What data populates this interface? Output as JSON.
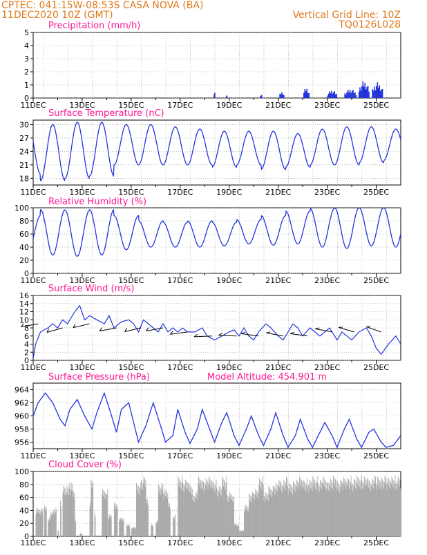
{
  "header": {
    "line1_left": "CPTEC:   041:15W-08:53S   CASA NOVA (BA)",
    "line2_left": "11DEC2020 10Z (GMT)",
    "line1_right": "Vertical Grid Line: 10Z",
    "line2_right": "TQ0126L028"
  },
  "colors": {
    "header": "#e07a1a",
    "title": "#ff1493",
    "series": "#2233dd",
    "cloud": "#a9a9a9",
    "grid": "#999999"
  },
  "x_axis": {
    "tick_labels": [
      "11DEC",
      "13DEC",
      "15DEC",
      "17DEC",
      "19DEC",
      "21DEC",
      "23DEC",
      "25DEC"
    ],
    "tick_days": [
      0,
      2,
      4,
      6,
      8,
      10,
      12,
      14
    ],
    "day_range": [
      0,
      15
    ]
  },
  "chart_data": [
    {
      "id": "precip",
      "type": "bar",
      "title": "Precipitation (mm/h)",
      "ylim": [
        0,
        5
      ],
      "yticks": [
        0,
        1,
        2,
        3,
        4,
        5
      ],
      "bursts": [
        {
          "day": 7.4,
          "width": 0.05,
          "peak": 0.6
        },
        {
          "day": 7.9,
          "width": 0.05,
          "peak": 0.25
        },
        {
          "day": 9.3,
          "width": 0.1,
          "peak": 0.3
        },
        {
          "day": 10.15,
          "width": 0.2,
          "peak": 0.5
        },
        {
          "day": 11.15,
          "width": 0.25,
          "peak": 0.8
        },
        {
          "day": 12.2,
          "width": 0.4,
          "peak": 0.6
        },
        {
          "day": 12.95,
          "width": 0.5,
          "peak": 0.7
        },
        {
          "day": 13.5,
          "width": 0.45,
          "peak": 1.3
        },
        {
          "day": 14.05,
          "width": 0.45,
          "peak": 1.2
        }
      ]
    },
    {
      "id": "temp",
      "type": "line",
      "title": "Surface Temperature (nC)",
      "ylim": [
        16.5,
        31
      ],
      "yticks": [
        18,
        21,
        24,
        27,
        30
      ],
      "period_days": 1,
      "min_phase_day": 0.3,
      "min_values": [
        19,
        17.5,
        18,
        18.5,
        21,
        21,
        21,
        21,
        20.5,
        21,
        20,
        20.5,
        21,
        21,
        21.5,
        22
      ],
      "max_values": [
        30,
        30,
        30.5,
        30.5,
        30,
        30,
        29.5,
        29,
        28.5,
        28.5,
        28.5,
        28,
        29,
        29.5,
        29.5,
        29
      ]
    },
    {
      "id": "rh",
      "type": "line",
      "title": "Relative Humidity (%)",
      "ylim": [
        0,
        100
      ],
      "yticks": [
        0,
        20,
        40,
        60,
        80,
        100
      ],
      "period_days": 1,
      "max_phase_day": 0.3,
      "max_values": [
        88,
        97,
        96,
        97,
        88,
        80,
        78,
        80,
        78,
        82,
        88,
        95,
        99,
        100,
        100,
        100
      ],
      "min_values": [
        35,
        28,
        26,
        28,
        36,
        40,
        40,
        40,
        42,
        45,
        43,
        45,
        40,
        38,
        42,
        40
      ]
    },
    {
      "id": "wind",
      "type": "line",
      "title": "Surface Wind (m/s)",
      "ylim": [
        0,
        16
      ],
      "yticks": [
        0,
        2,
        4,
        6,
        8,
        10,
        12,
        14,
        16
      ],
      "speed_points": [
        [
          0,
          0.5
        ],
        [
          0.1,
          4
        ],
        [
          0.3,
          7
        ],
        [
          0.6,
          8
        ],
        [
          0.8,
          9
        ],
        [
          1.0,
          8
        ],
        [
          1.2,
          10
        ],
        [
          1.4,
          9
        ],
        [
          1.7,
          12
        ],
        [
          1.9,
          13.5
        ],
        [
          2.1,
          10
        ],
        [
          2.3,
          11
        ],
        [
          2.6,
          10
        ],
        [
          2.9,
          9
        ],
        [
          3.1,
          11
        ],
        [
          3.3,
          8
        ],
        [
          3.6,
          9.5
        ],
        [
          3.9,
          10
        ],
        [
          4.1,
          9
        ],
        [
          4.3,
          7
        ],
        [
          4.5,
          10
        ],
        [
          4.7,
          9
        ],
        [
          4.9,
          8
        ],
        [
          5.1,
          7
        ],
        [
          5.3,
          9
        ],
        [
          5.5,
          7
        ],
        [
          5.7,
          8
        ],
        [
          5.9,
          7
        ],
        [
          6.1,
          8
        ],
        [
          6.3,
          7
        ],
        [
          6.6,
          7
        ],
        [
          6.9,
          8
        ],
        [
          7.1,
          6
        ],
        [
          7.4,
          5
        ],
        [
          7.7,
          6
        ],
        [
          8.0,
          7
        ],
        [
          8.2,
          7.5
        ],
        [
          8.4,
          6
        ],
        [
          8.6,
          8
        ],
        [
          8.8,
          6
        ],
        [
          9.0,
          5
        ],
        [
          9.2,
          7
        ],
        [
          9.5,
          9
        ],
        [
          9.7,
          8
        ],
        [
          10.0,
          6
        ],
        [
          10.2,
          5
        ],
        [
          10.4,
          7
        ],
        [
          10.6,
          9
        ],
        [
          10.8,
          8
        ],
        [
          11.0,
          6
        ],
        [
          11.3,
          8
        ],
        [
          11.5,
          7
        ],
        [
          11.7,
          6
        ],
        [
          11.9,
          7
        ],
        [
          12.1,
          8
        ],
        [
          12.4,
          5
        ],
        [
          12.6,
          7
        ],
        [
          12.8,
          6
        ],
        [
          13.0,
          5
        ],
        [
          13.3,
          7
        ],
        [
          13.6,
          8
        ],
        [
          13.8,
          6
        ],
        [
          14.0,
          3
        ],
        [
          14.2,
          1.5
        ],
        [
          14.5,
          4
        ],
        [
          14.8,
          6
        ],
        [
          15.0,
          4
        ]
      ],
      "barbs": [
        {
          "day": 0.2,
          "speed": 9,
          "dir_deg": 160
        },
        {
          "day": 1.2,
          "speed": 8,
          "dir_deg": 150
        },
        {
          "day": 2.3,
          "speed": 9,
          "dir_deg": 155
        },
        {
          "day": 3.4,
          "speed": 8,
          "dir_deg": 160
        },
        {
          "day": 4.4,
          "speed": 8,
          "dir_deg": 155
        },
        {
          "day": 5.3,
          "speed": 8,
          "dir_deg": 160
        },
        {
          "day": 6.3,
          "speed": 7,
          "dir_deg": 165
        },
        {
          "day": 7.3,
          "speed": 6,
          "dir_deg": 175
        },
        {
          "day": 8.3,
          "speed": 6,
          "dir_deg": 185
        },
        {
          "day": 9.2,
          "speed": 6,
          "dir_deg": 195
        },
        {
          "day": 10.2,
          "speed": 6,
          "dir_deg": 200
        },
        {
          "day": 11.2,
          "speed": 6,
          "dir_deg": 195
        },
        {
          "day": 12.2,
          "speed": 7,
          "dir_deg": 200
        },
        {
          "day": 13.1,
          "speed": 7,
          "dir_deg": 210
        },
        {
          "day": 14.2,
          "speed": 7,
          "dir_deg": 215
        }
      ]
    },
    {
      "id": "press",
      "type": "line",
      "title": "Surface Pressure (hPa)",
      "annotation": "Model Altitude: 454.901  m",
      "ylim": [
        955,
        965
      ],
      "yticks": [
        956,
        958,
        960,
        962,
        964
      ],
      "points": [
        [
          0,
          960
        ],
        [
          0.2,
          962
        ],
        [
          0.5,
          963.5
        ],
        [
          0.8,
          962
        ],
        [
          1.1,
          959.5
        ],
        [
          1.3,
          958.5
        ],
        [
          1.5,
          961
        ],
        [
          1.8,
          962.5
        ],
        [
          2.1,
          960
        ],
        [
          2.4,
          958
        ],
        [
          2.6,
          960.5
        ],
        [
          2.9,
          963.5
        ],
        [
          3.2,
          960
        ],
        [
          3.4,
          957.5
        ],
        [
          3.6,
          961
        ],
        [
          3.9,
          962
        ],
        [
          4.1,
          959
        ],
        [
          4.3,
          956
        ],
        [
          4.6,
          958.5
        ],
        [
          4.9,
          962
        ],
        [
          5.2,
          958.5
        ],
        [
          5.4,
          956
        ],
        [
          5.7,
          957
        ],
        [
          5.9,
          961
        ],
        [
          6.2,
          957.5
        ],
        [
          6.4,
          955.8
        ],
        [
          6.7,
          958
        ],
        [
          6.9,
          961
        ],
        [
          7.2,
          958
        ],
        [
          7.4,
          956
        ],
        [
          7.7,
          959
        ],
        [
          7.9,
          960.5
        ],
        [
          8.2,
          957
        ],
        [
          8.4,
          955.5
        ],
        [
          8.7,
          958
        ],
        [
          8.9,
          960
        ],
        [
          9.2,
          957
        ],
        [
          9.4,
          955.5
        ],
        [
          9.7,
          958
        ],
        [
          9.9,
          960.5
        ],
        [
          10.2,
          957
        ],
        [
          10.4,
          955.2
        ],
        [
          10.7,
          957
        ],
        [
          10.9,
          959.5
        ],
        [
          11.2,
          956.5
        ],
        [
          11.4,
          955.2
        ],
        [
          11.7,
          957.5
        ],
        [
          11.9,
          959
        ],
        [
          12.2,
          957
        ],
        [
          12.4,
          955.2
        ],
        [
          12.7,
          958
        ],
        [
          12.9,
          959.5
        ],
        [
          13.2,
          956.5
        ],
        [
          13.4,
          955.2
        ],
        [
          13.7,
          957.5
        ],
        [
          13.9,
          958
        ],
        [
          14.2,
          956
        ],
        [
          14.4,
          955.2
        ],
        [
          14.7,
          955.5
        ],
        [
          15.0,
          957
        ]
      ]
    },
    {
      "id": "cloud",
      "type": "area",
      "title": "Cloud Cover (%)",
      "ylim": [
        0,
        100
      ],
      "yticks": [
        0,
        20,
        40,
        60,
        80,
        100
      ],
      "segments": [
        [
          0.1,
          0.4,
          45
        ],
        [
          0.45,
          0.55,
          50
        ],
        [
          0.6,
          0.7,
          30
        ],
        [
          0.7,
          0.8,
          40
        ],
        [
          0.8,
          0.95,
          45
        ],
        [
          1.0,
          1.05,
          10
        ],
        [
          1.1,
          1.15,
          60
        ],
        [
          1.2,
          1.35,
          80
        ],
        [
          1.35,
          1.5,
          85
        ],
        [
          1.5,
          1.6,
          85
        ],
        [
          1.6,
          1.7,
          75
        ],
        [
          1.7,
          1.75,
          30
        ],
        [
          1.9,
          2.0,
          5
        ],
        [
          2.3,
          2.35,
          60
        ],
        [
          2.35,
          2.45,
          90
        ],
        [
          2.5,
          2.55,
          40
        ],
        [
          2.8,
          3.0,
          75
        ],
        [
          3.0,
          3.05,
          80
        ],
        [
          3.05,
          3.2,
          35
        ],
        [
          3.3,
          3.45,
          55
        ],
        [
          3.5,
          3.7,
          30
        ],
        [
          3.8,
          3.95,
          20
        ],
        [
          4.0,
          4.2,
          15
        ],
        [
          4.2,
          4.4,
          85
        ],
        [
          4.4,
          4.6,
          95
        ],
        [
          4.6,
          4.7,
          60
        ],
        [
          4.8,
          4.9,
          20
        ],
        [
          5.0,
          5.1,
          25
        ],
        [
          5.1,
          5.3,
          85
        ],
        [
          5.3,
          5.5,
          75
        ],
        [
          5.5,
          5.6,
          55
        ],
        [
          5.7,
          5.8,
          35
        ],
        [
          5.9,
          6.1,
          95
        ],
        [
          6.1,
          6.3,
          90
        ],
        [
          6.3,
          6.5,
          85
        ],
        [
          6.5,
          6.7,
          70
        ],
        [
          6.7,
          6.9,
          95
        ],
        [
          6.9,
          7.1,
          92
        ],
        [
          7.1,
          7.3,
          95
        ],
        [
          7.3,
          7.5,
          90
        ],
        [
          7.5,
          7.7,
          80
        ],
        [
          7.7,
          7.9,
          95
        ],
        [
          7.9,
          8.2,
          70
        ],
        [
          8.2,
          8.4,
          20
        ],
        [
          8.4,
          8.6,
          10
        ],
        [
          8.6,
          8.8,
          50
        ],
        [
          8.8,
          9.0,
          70
        ],
        [
          9.0,
          9.2,
          75
        ],
        [
          9.2,
          9.4,
          95
        ],
        [
          9.4,
          9.6,
          70
        ],
        [
          9.6,
          9.8,
          80
        ],
        [
          9.8,
          10.0,
          85
        ],
        [
          10.0,
          10.2,
          90
        ],
        [
          10.2,
          10.4,
          95
        ],
        [
          10.4,
          10.6,
          85
        ],
        [
          10.6,
          10.8,
          90
        ],
        [
          10.8,
          11.0,
          95
        ],
        [
          11.0,
          11.2,
          92
        ],
        [
          11.2,
          11.4,
          90
        ],
        [
          11.4,
          11.6,
          95
        ],
        [
          11.6,
          11.8,
          90
        ],
        [
          11.8,
          12.0,
          95
        ],
        [
          12.0,
          12.2,
          92
        ],
        [
          12.2,
          12.4,
          96
        ],
        [
          12.4,
          12.6,
          90
        ],
        [
          12.6,
          12.8,
          94
        ],
        [
          12.8,
          13.0,
          96
        ],
        [
          13.0,
          13.2,
          92
        ],
        [
          13.2,
          13.4,
          97
        ],
        [
          13.4,
          13.6,
          95
        ],
        [
          13.6,
          13.8,
          93
        ],
        [
          13.8,
          14.0,
          97
        ],
        [
          14.0,
          14.2,
          95
        ],
        [
          14.2,
          14.4,
          96
        ],
        [
          14.4,
          14.6,
          94
        ],
        [
          14.6,
          14.8,
          97
        ],
        [
          14.8,
          15.0,
          95
        ]
      ]
    }
  ]
}
